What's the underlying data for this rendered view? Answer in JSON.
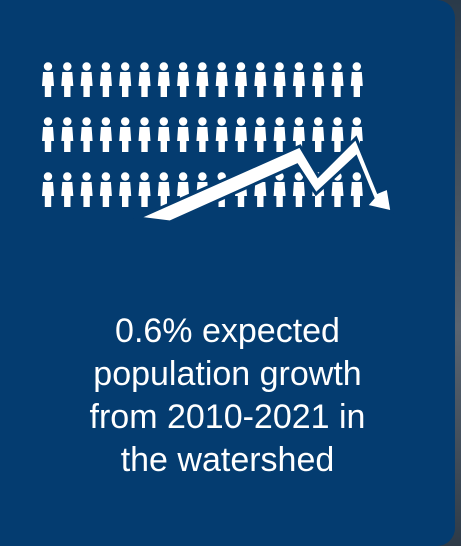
{
  "card": {
    "background_color": "#043c70",
    "text_color": "#ffffff",
    "icon": "people-crowd-with-declining-arrow-icon",
    "people_rows": 3,
    "people_per_row": 17,
    "stat_lines": [
      "0.6% expected",
      "population growth",
      "from 2010-2021 in",
      "the watershed"
    ]
  }
}
